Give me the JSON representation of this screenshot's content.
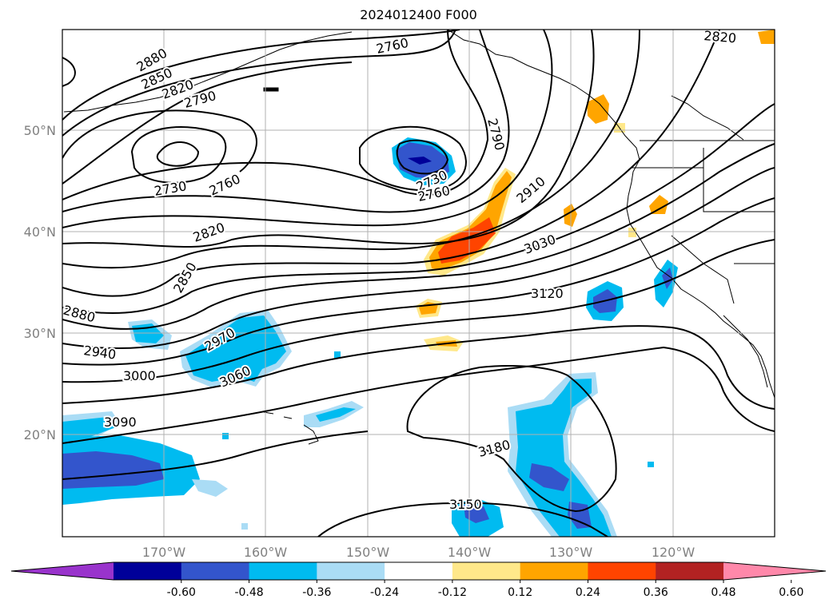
{
  "title": "2024012400 F000",
  "lon_ticks": [
    {
      "label": "170°W",
      "value": -170
    },
    {
      "label": "160°W",
      "value": -160
    },
    {
      "label": "150°W",
      "value": -150
    },
    {
      "label": "140°W",
      "value": -140
    },
    {
      "label": "130°W",
      "value": -130
    },
    {
      "label": "120°W",
      "value": -120
    }
  ],
  "lat_ticks": [
    {
      "label": "50°N",
      "value": 50
    },
    {
      "label": "40°N",
      "value": 40
    },
    {
      "label": "30°N",
      "value": 30
    },
    {
      "label": "20°N",
      "value": 20
    }
  ],
  "map_extent": {
    "lon": [
      -180,
      -110
    ],
    "lat": [
      10,
      60
    ]
  },
  "contour_labels": [
    "2880",
    "2850",
    "2820",
    "2790",
    "2760",
    "2730",
    "2910",
    "3030",
    "3120",
    "2970",
    "3060",
    "2940",
    "3000",
    "3090",
    "3180",
    "3150"
  ],
  "colorbar": {
    "ticks": [
      "-0.60",
      "-0.48",
      "-0.36",
      "-0.24",
      "-0.12",
      "0.12",
      "0.24",
      "0.36",
      "0.48",
      "0.60"
    ],
    "colors": [
      "#9933cc",
      "#000099",
      "#3355cc",
      "#00bbf0",
      "#aadcf5",
      "#ffffff",
      "#ffe88a",
      "#ffa500",
      "#ff4400",
      "#b22222",
      "#ff88aa"
    ]
  }
}
